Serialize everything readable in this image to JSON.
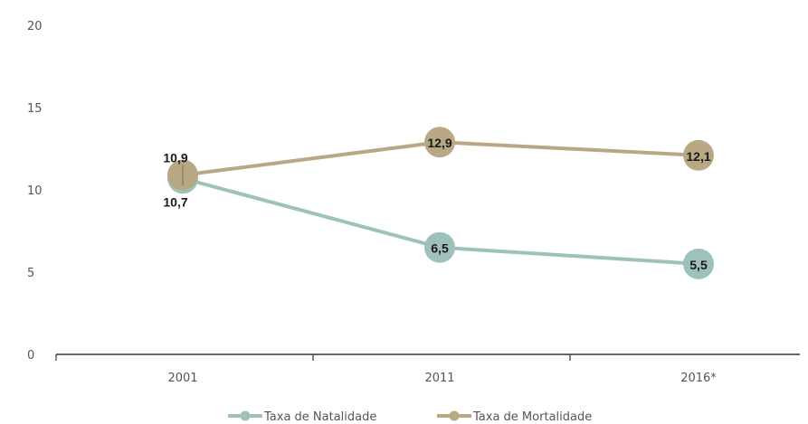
{
  "chart_data": {
    "type": "line",
    "categories": [
      "2001",
      "2011",
      "2016*"
    ],
    "series": [
      {
        "name": "Taxa de Natalidade",
        "values": [
          10.7,
          6.5,
          5.5
        ],
        "labels": [
          "10,7",
          "6,5",
          "5,5"
        ],
        "color": "#9fc1bc"
      },
      {
        "name": "Taxa de Mortalidade",
        "values": [
          10.9,
          12.9,
          12.1
        ],
        "labels": [
          "10,9",
          "12,9",
          "12,1"
        ],
        "color": "#b9a884"
      }
    ],
    "y_ticks": [
      "0",
      "5",
      "10",
      "15",
      "20"
    ],
    "ylim": [
      0,
      20
    ],
    "grid": false,
    "legend_position": "bottom",
    "title": "",
    "xlabel": "",
    "ylabel": ""
  }
}
